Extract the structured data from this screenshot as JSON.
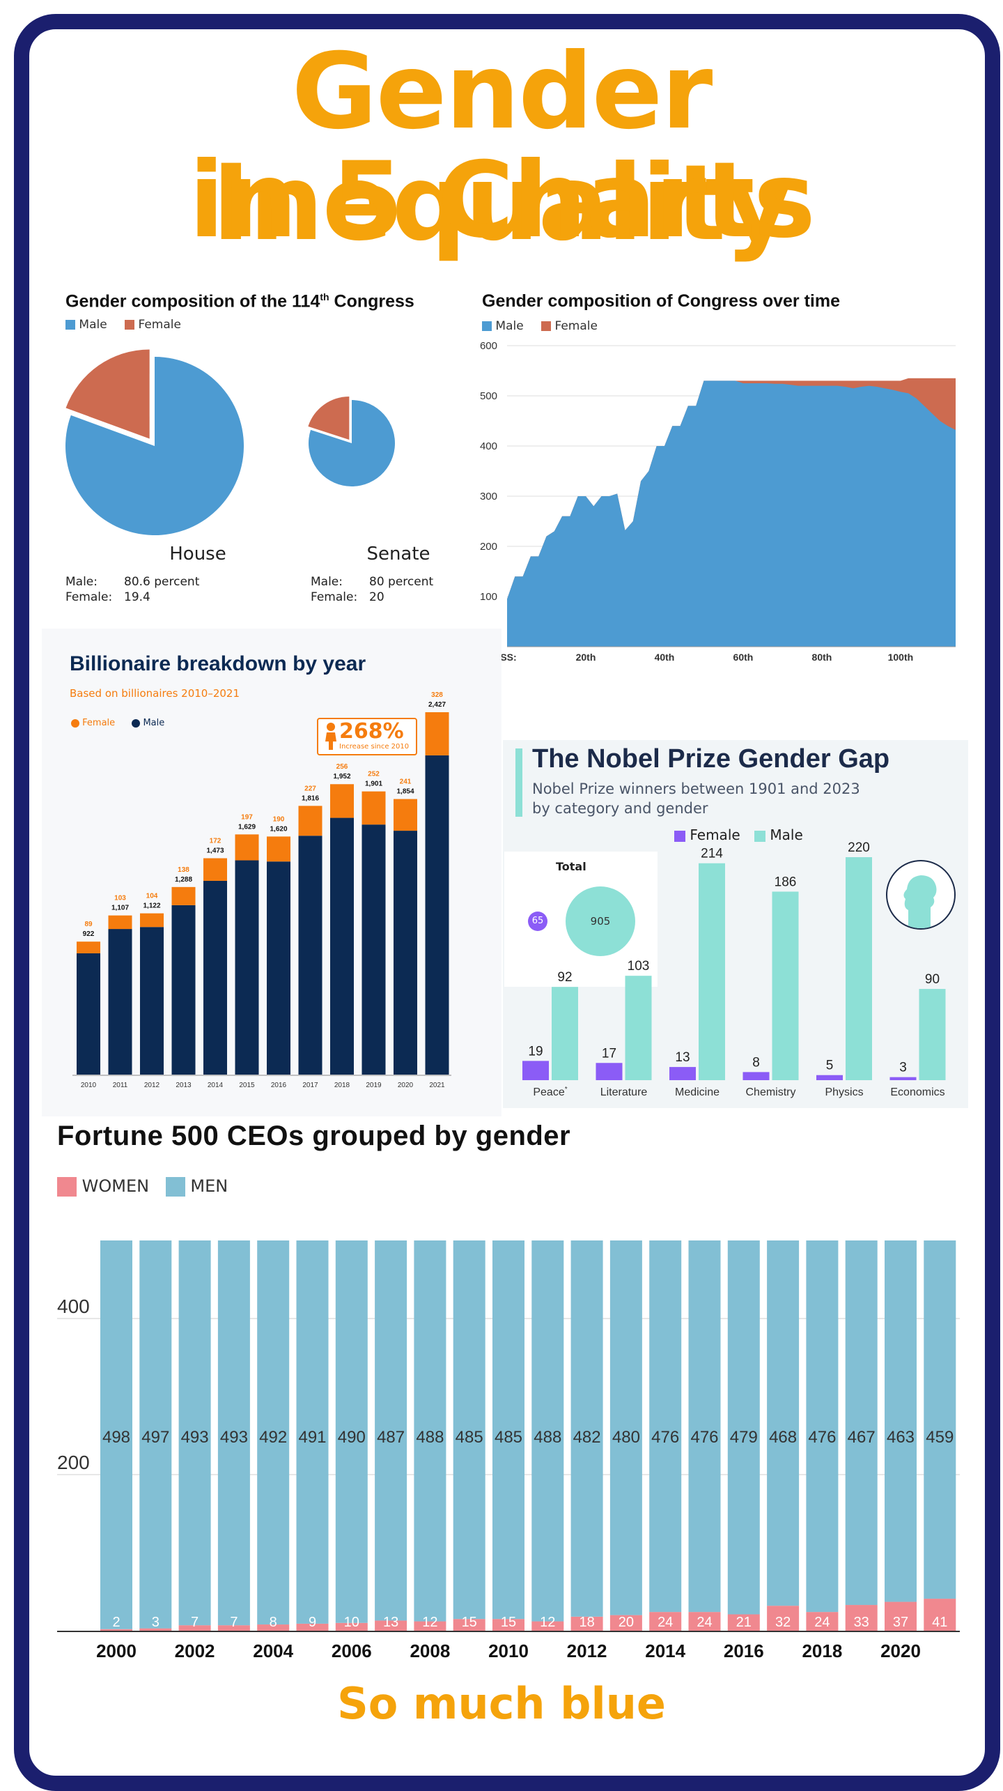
{
  "title": {
    "line1": "Gender Inequality",
    "line2": "in 5 Charts"
  },
  "footer": "So much blue",
  "colors": {
    "orange_title": "#f5a30b",
    "frame": "#1b1f6e",
    "male_blue": "#4d9bd2",
    "female_red": "#cd6b50",
    "billion_orange": "#f57c0e",
    "billion_navy": "#0c2a53",
    "nobel_purple": "#8b5cf6",
    "nobel_teal": "#8de0d6",
    "ceo_pink": "#f0888f",
    "ceo_blue": "#82bfd4"
  },
  "chart_data": [
    {
      "type": "pie",
      "title": "Gender composition of the 114",
      "title_sup": "th",
      "title_end": " Congress",
      "legend": [
        "Male",
        "Female"
      ],
      "pies": [
        {
          "name": "House",
          "male_label": "Male:",
          "male_value": "80.6 percent",
          "female_label": "Female:",
          "female_value": "19.4",
          "male": 80.6,
          "female": 19.4
        },
        {
          "name": "Senate",
          "male_label": "Male:",
          "male_value": "80 percent",
          "female_label": "Female:",
          "female_value": "20",
          "male": 80,
          "female": 20
        }
      ]
    },
    {
      "type": "area",
      "title": "Gender composition of Congress over time",
      "legend": [
        "Male",
        "Female"
      ],
      "y_ticks": [
        "600",
        "500",
        "400",
        "300",
        "200",
        "100"
      ],
      "ylim": [
        0,
        600
      ],
      "x_ticks": [
        "GRESS:",
        "20th",
        "40th",
        "60th",
        "80th",
        "100th"
      ],
      "x_tick_values": [
        0,
        20,
        40,
        60,
        80,
        100
      ],
      "xlim": [
        0,
        114
      ],
      "x": [
        0,
        2,
        4,
        6,
        8,
        10,
        12,
        14,
        16,
        18,
        20,
        22,
        24,
        26,
        28,
        30,
        32,
        34,
        36,
        38,
        40,
        42,
        44,
        46,
        48,
        50,
        52,
        54,
        56,
        58,
        60,
        62,
        64,
        66,
        68,
        70,
        72,
        74,
        76,
        78,
        80,
        82,
        84,
        86,
        88,
        90,
        92,
        94,
        96,
        98,
        100,
        102,
        104,
        106,
        108,
        110,
        112,
        114
      ],
      "total": [
        95,
        140,
        140,
        180,
        180,
        220,
        230,
        260,
        260,
        300,
        300,
        280,
        300,
        300,
        305,
        232,
        250,
        330,
        350,
        400,
        400,
        440,
        440,
        480,
        480,
        530,
        530,
        530,
        530,
        530,
        530,
        530,
        530,
        530,
        530,
        530,
        530,
        530,
        530,
        530,
        530,
        530,
        530,
        530,
        530,
        530,
        530,
        530,
        530,
        530,
        530,
        535,
        535,
        535,
        535,
        535,
        535,
        535
      ],
      "male": [
        95,
        140,
        140,
        180,
        180,
        220,
        230,
        260,
        260,
        300,
        300,
        280,
        300,
        300,
        305,
        232,
        250,
        330,
        350,
        400,
        400,
        440,
        440,
        480,
        480,
        530,
        530,
        530,
        530,
        530,
        525,
        525,
        525,
        525,
        524,
        524,
        522,
        520,
        520,
        520,
        520,
        520,
        520,
        518,
        515,
        518,
        520,
        518,
        515,
        512,
        508,
        505,
        495,
        480,
        465,
        450,
        440,
        432
      ]
    },
    {
      "type": "bar",
      "title": "Billionaire breakdown by year",
      "subtitle": "Based on billionaires 2010–2021",
      "legend": [
        "Female",
        "Male"
      ],
      "callout": "268%",
      "callout_sub": "Increase since 2010",
      "categories": [
        "2010",
        "2011",
        "2012",
        "2013",
        "2014",
        "2015",
        "2016",
        "2017",
        "2018",
        "2019",
        "2020",
        "2021"
      ],
      "series": [
        {
          "name": "Male",
          "values": [
            922,
            1107,
            1122,
            1288,
            1473,
            1629,
            1620,
            1816,
            1952,
            1901,
            1854,
            2427
          ],
          "labels": [
            "922",
            "1,107",
            "1,122",
            "1,288",
            "1,473",
            "1,629",
            "1,620",
            "1,816",
            "1,952",
            "1,901",
            "1,854",
            "2,427"
          ]
        },
        {
          "name": "Female",
          "values": [
            89,
            103,
            104,
            138,
            172,
            197,
            190,
            227,
            256,
            252,
            241,
            328
          ],
          "labels": [
            "89",
            "103",
            "104",
            "138",
            "172",
            "197",
            "190",
            "227",
            "256",
            "252",
            "241",
            "328"
          ]
        }
      ],
      "ylim": [
        0,
        2755
      ]
    },
    {
      "type": "bar",
      "title": "The Nobel Prize Gender Gap",
      "subtitle1": "Nobel Prize winners between 1901 and 2023",
      "subtitle2": "by category and gender",
      "legend": [
        "Female",
        "Male"
      ],
      "total_label": "Total",
      "total_female": "65",
      "total_male": "905",
      "categories": [
        "Peace",
        "Literature",
        "Medicine",
        "Chemistry",
        "Physics",
        "Economics"
      ],
      "peace_mark": "*",
      "series": [
        {
          "name": "Female",
          "values": [
            19,
            17,
            13,
            8,
            5,
            3
          ]
        },
        {
          "name": "Male",
          "values": [
            92,
            103,
            214,
            186,
            220,
            90
          ]
        }
      ],
      "ylim": [
        0,
        220
      ]
    },
    {
      "type": "bar",
      "title": "Fortune 500 CEOs grouped by gender",
      "legend": [
        "WOMEN",
        "MEN"
      ],
      "y_ticks": [
        "400",
        "200"
      ],
      "y_tick_values": [
        400,
        200
      ],
      "ylim": [
        0,
        500
      ],
      "x_ticks": [
        "2000",
        "2002",
        "2004",
        "2006",
        "2008",
        "2010",
        "2012",
        "2014",
        "2016",
        "2018",
        "2020"
      ],
      "categories": [
        "2000",
        "2001",
        "2002",
        "2003",
        "2004",
        "2005",
        "2006",
        "2007",
        "2008",
        "2009",
        "2010",
        "2011",
        "2012",
        "2013",
        "2014",
        "2015",
        "2016",
        "2017",
        "2018",
        "2019",
        "2020",
        "2021"
      ],
      "series": [
        {
          "name": "WOMEN",
          "values": [
            2,
            3,
            7,
            7,
            8,
            9,
            10,
            13,
            12,
            15,
            15,
            12,
            18,
            20,
            24,
            24,
            21,
            32,
            24,
            33,
            37,
            41
          ]
        },
        {
          "name": "MEN",
          "values": [
            498,
            497,
            493,
            493,
            492,
            491,
            490,
            487,
            488,
            485,
            485,
            488,
            482,
            480,
            476,
            476,
            479,
            468,
            476,
            467,
            463,
            459
          ]
        }
      ]
    }
  ]
}
